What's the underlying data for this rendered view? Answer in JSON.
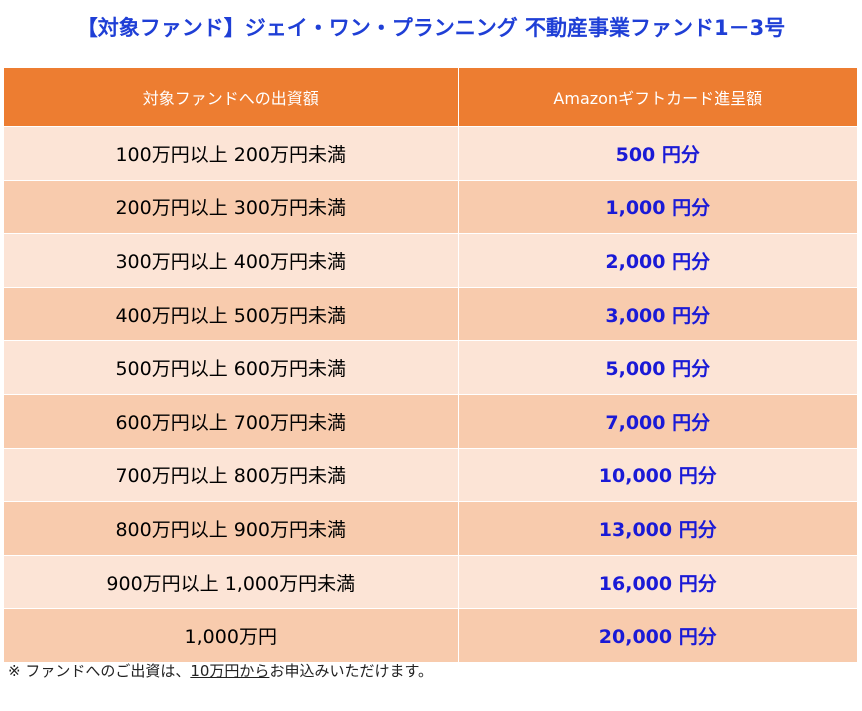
{
  "header": {
    "title": "【対象ファンド】ジェイ・ワン・プランニング 不動産事業ファンド1－3号"
  },
  "table": {
    "columns": [
      "対象ファンドへの出資額",
      "Amazonギフトカード進呈額"
    ],
    "rows": [
      [
        "100万円以上 200万円未満",
        "500 円分"
      ],
      [
        "200万円以上 300万円未満",
        "1,000 円分"
      ],
      [
        "300万円以上 400万円未満",
        "2,000 円分"
      ],
      [
        "400万円以上 500万円未満",
        "3,000 円分"
      ],
      [
        "500万円以上 600万円未満",
        "5,000 円分"
      ],
      [
        "600万円以上 700万円未満",
        "7,000 円分"
      ],
      [
        "700万円以上 800万円未満",
        "10,000 円分"
      ],
      [
        "800万円以上 900万円未満",
        "13,000 円分"
      ],
      [
        "900万円以上 1,000万円未満",
        "16,000 円分"
      ],
      [
        "1,000万円",
        "20,000 円分"
      ]
    ]
  },
  "footnote": {
    "prefix": "※ ファンドへのご出資は、",
    "underlined": "10万円から",
    "suffix": "お申込みいただけます。"
  }
}
